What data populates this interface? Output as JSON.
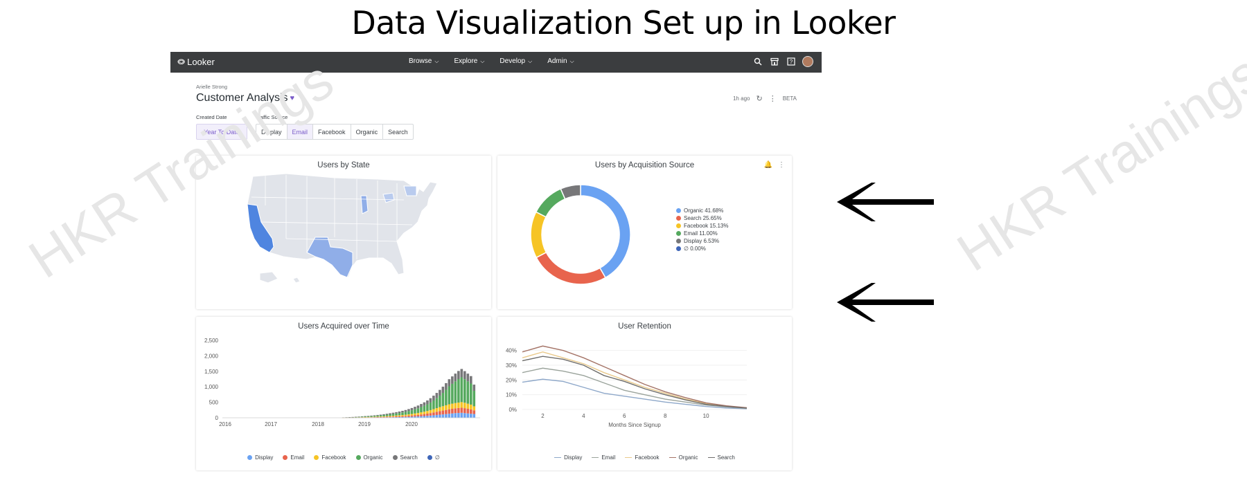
{
  "page_heading": "Data Visualization Set up in Looker",
  "watermark": "HKR Trainings",
  "topbar": {
    "logo": "Looker",
    "nav": [
      {
        "label": "Browse"
      },
      {
        "label": "Explore"
      },
      {
        "label": "Develop"
      },
      {
        "label": "Admin"
      }
    ]
  },
  "dashboard": {
    "owner": "Arielle Strong",
    "title": "Customer Analysis",
    "updated": "1h ago",
    "beta": "BETA"
  },
  "filters": {
    "created_date_label": "Created Date",
    "created_date_value": "Year To Date",
    "traffic_source_label": "Traffic Source",
    "traffic_sources": [
      "Display",
      "Email",
      "Facebook",
      "Organic",
      "Search"
    ],
    "traffic_source_selected": "Email"
  },
  "colors": {
    "organic": "#6aa2f2",
    "search": "#e8644d",
    "facebook": "#f6c425",
    "email": "#55a95e",
    "display": "#777779",
    "null": "#3f66b8"
  },
  "tiles": {
    "users_by_state": {
      "title": "Users by State"
    },
    "acquisition": {
      "title": "Users by Acquisition Source"
    },
    "acquired": {
      "title": "Users Acquired over Time"
    },
    "retention": {
      "title": "User Retention"
    }
  },
  "chart_data": [
    {
      "type": "pie",
      "title": "Users by Acquisition Source",
      "categories": [
        "Organic",
        "Search",
        "Facebook",
        "Email",
        "Display",
        "∅"
      ],
      "values": [
        41.68,
        25.65,
        15.13,
        11.0,
        6.53,
        0.0
      ],
      "legend_labels": [
        "Organic 41.68%",
        "Search 25.65%",
        "Facebook 15.13%",
        "Email 11.00%",
        "Display 6.53%",
        "∅ 0.00%"
      ],
      "colors": [
        "#6aa2f2",
        "#e8644d",
        "#f6c425",
        "#55a95e",
        "#777779",
        "#3f66b8"
      ],
      "legend": "right"
    },
    {
      "type": "bar",
      "title": "Users Acquired over Time",
      "stacked": true,
      "x_ticks": [
        "2016",
        "2017",
        "2018",
        "2019",
        "2020"
      ],
      "y_ticks": [
        "0",
        "500",
        "1,000",
        "1,500",
        "2,000",
        "2,500"
      ],
      "ylim": [
        0,
        2500
      ],
      "legend": "bottom",
      "series": [
        {
          "name": "Display",
          "color": "#6aa2f2",
          "values": [
            0,
            0,
            0,
            0,
            0,
            0,
            0,
            0,
            0,
            0,
            0,
            0,
            0,
            0,
            0,
            0,
            0,
            0,
            1,
            2,
            3,
            3,
            4,
            5,
            6,
            7,
            8,
            9,
            10,
            11,
            12,
            13,
            15,
            17,
            19,
            21,
            23,
            25,
            28,
            31,
            35,
            40,
            45,
            50,
            56,
            62,
            70,
            80,
            90,
            100,
            108,
            118,
            130,
            140,
            150,
            155,
            160,
            150,
            140,
            130,
            120
          ]
        },
        {
          "name": "Email",
          "color": "#e8644d",
          "values": [
            0,
            0,
            0,
            0,
            0,
            0,
            0,
            0,
            0,
            0,
            0,
            0,
            0,
            0,
            0,
            0,
            0,
            0,
            1,
            2,
            3,
            3,
            4,
            5,
            6,
            7,
            8,
            9,
            10,
            12,
            13,
            15,
            17,
            19,
            21,
            23,
            26,
            29,
            32,
            36,
            40,
            45,
            50,
            57,
            64,
            72,
            82,
            92,
            104,
            115,
            125,
            135,
            145,
            150,
            155,
            160,
            165,
            160,
            150,
            140,
            120
          ]
        },
        {
          "name": "Facebook",
          "color": "#f6c425",
          "values": [
            0,
            0,
            0,
            0,
            0,
            0,
            0,
            0,
            0,
            0,
            0,
            0,
            0,
            0,
            0,
            0,
            0,
            0,
            2,
            2,
            3,
            4,
            5,
            6,
            7,
            8,
            9,
            10,
            12,
            14,
            16,
            18,
            20,
            22,
            25,
            28,
            31,
            34,
            38,
            43,
            48,
            54,
            60,
            68,
            76,
            85,
            95,
            106,
            118,
            130,
            140,
            150,
            160,
            165,
            170,
            175,
            180,
            175,
            165,
            155,
            130
          ]
        },
        {
          "name": "Organic",
          "color": "#55a95e",
          "values": [
            0,
            0,
            0,
            0,
            0,
            0,
            0,
            0,
            0,
            0,
            0,
            0,
            0,
            0,
            0,
            0,
            0,
            0,
            5,
            6,
            8,
            10,
            12,
            14,
            17,
            20,
            23,
            26,
            30,
            34,
            38,
            43,
            48,
            54,
            60,
            67,
            75,
            84,
            94,
            106,
            120,
            135,
            150,
            170,
            190,
            215,
            245,
            280,
            320,
            370,
            430,
            500,
            580,
            640,
            700,
            760,
            800,
            760,
            720,
            680,
            500
          ]
        },
        {
          "name": "Search",
          "color": "#777779",
          "values": [
            0,
            0,
            0,
            0,
            0,
            0,
            0,
            0,
            0,
            0,
            0,
            0,
            0,
            0,
            0,
            0,
            0,
            0,
            3,
            4,
            5,
            6,
            7,
            8,
            10,
            12,
            14,
            16,
            18,
            20,
            23,
            26,
            30,
            34,
            38,
            42,
            47,
            52,
            58,
            65,
            72,
            80,
            90,
            100,
            112,
            125,
            140,
            155,
            170,
            185,
            200,
            215,
            230,
            240,
            250,
            260,
            270,
            260,
            250,
            240,
            200
          ]
        },
        {
          "name": "∅",
          "color": "#3f66b8",
          "values": [
            0,
            0,
            0,
            0,
            0,
            0,
            0,
            0,
            0,
            0,
            0,
            0,
            0,
            0,
            0,
            0,
            0,
            0,
            0,
            0,
            0,
            0,
            0,
            0,
            0,
            0,
            0,
            0,
            0,
            0,
            0,
            0,
            0,
            0,
            0,
            0,
            0,
            0,
            0,
            0,
            0,
            0,
            0,
            0,
            0,
            0,
            0,
            0,
            0,
            0,
            0,
            0,
            0,
            0,
            0,
            0,
            0,
            0,
            0,
            0,
            0
          ]
        }
      ]
    },
    {
      "type": "line",
      "title": "User Retention",
      "xlabel": "Months Since Signup",
      "x": [
        1,
        2,
        3,
        4,
        5,
        6,
        7,
        8,
        9,
        10,
        11,
        12
      ],
      "x_ticks": [
        "2",
        "4",
        "6",
        "8",
        "10"
      ],
      "y_ticks": [
        "0%",
        "10%",
        "20%",
        "30%",
        "40%"
      ],
      "ylim": [
        0,
        45
      ],
      "legend": "bottom",
      "series": [
        {
          "name": "Display",
          "color": "#8da7c9",
          "values": [
            18.5,
            20.5,
            19,
            15,
            11,
            9,
            7,
            5,
            3.5,
            2,
            1,
            0.5
          ]
        },
        {
          "name": "Email",
          "color": "#9aa39b",
          "values": [
            25,
            28,
            26,
            23,
            18,
            13,
            10,
            7,
            5,
            3,
            1.8,
            0.8
          ]
        },
        {
          "name": "Facebook",
          "color": "#e9c98a",
          "values": [
            35,
            39,
            35,
            31,
            25,
            20,
            15,
            11,
            7,
            4,
            2.3,
            1
          ]
        },
        {
          "name": "Organic",
          "color": "#a47366",
          "values": [
            39,
            43,
            40,
            35,
            29,
            23,
            17,
            12,
            8,
            4.5,
            2.5,
            1.2
          ]
        },
        {
          "name": "Search",
          "color": "#6e6d6b",
          "values": [
            33,
            36,
            34,
            30,
            23,
            19,
            14,
            10,
            6.5,
            3.5,
            2,
            0.9
          ]
        }
      ]
    }
  ]
}
